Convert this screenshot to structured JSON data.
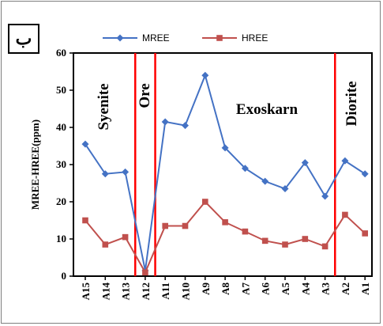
{
  "panel_label": "ب",
  "chart_data": {
    "type": "line",
    "title": "",
    "xlabel": "",
    "ylabel": "MREE-HREE(ppm)",
    "ylim": [
      0,
      60
    ],
    "yticks": [
      "0",
      "10",
      "20",
      "30",
      "40",
      "50",
      "60"
    ],
    "categories": [
      "A15",
      "A14",
      "A13",
      "A12",
      "A11",
      "A10",
      "A9",
      "A8",
      "A7",
      "A6",
      "A5",
      "A4",
      "A3",
      "A2",
      "A1"
    ],
    "series": [
      {
        "name": "MREE",
        "color": "#4472c4",
        "marker": "diamond",
        "values": [
          35.5,
          27.5,
          28,
          1.5,
          41.5,
          40.5,
          54,
          34.5,
          29,
          25.5,
          23.5,
          30.5,
          21.5,
          31,
          27.5
        ]
      },
      {
        "name": "HREE",
        "color": "#c0504d",
        "marker": "square",
        "values": [
          15,
          8.5,
          10.5,
          1,
          13.5,
          13.5,
          20,
          14.5,
          12,
          9.5,
          8.5,
          10,
          8,
          16.5,
          11.5
        ]
      }
    ],
    "regions": [
      "Syenite",
      "Ore",
      "Exoskarn",
      "Diorite"
    ],
    "boundary_color": "#ff0000",
    "legend_placement": "top-center",
    "grid": false
  }
}
